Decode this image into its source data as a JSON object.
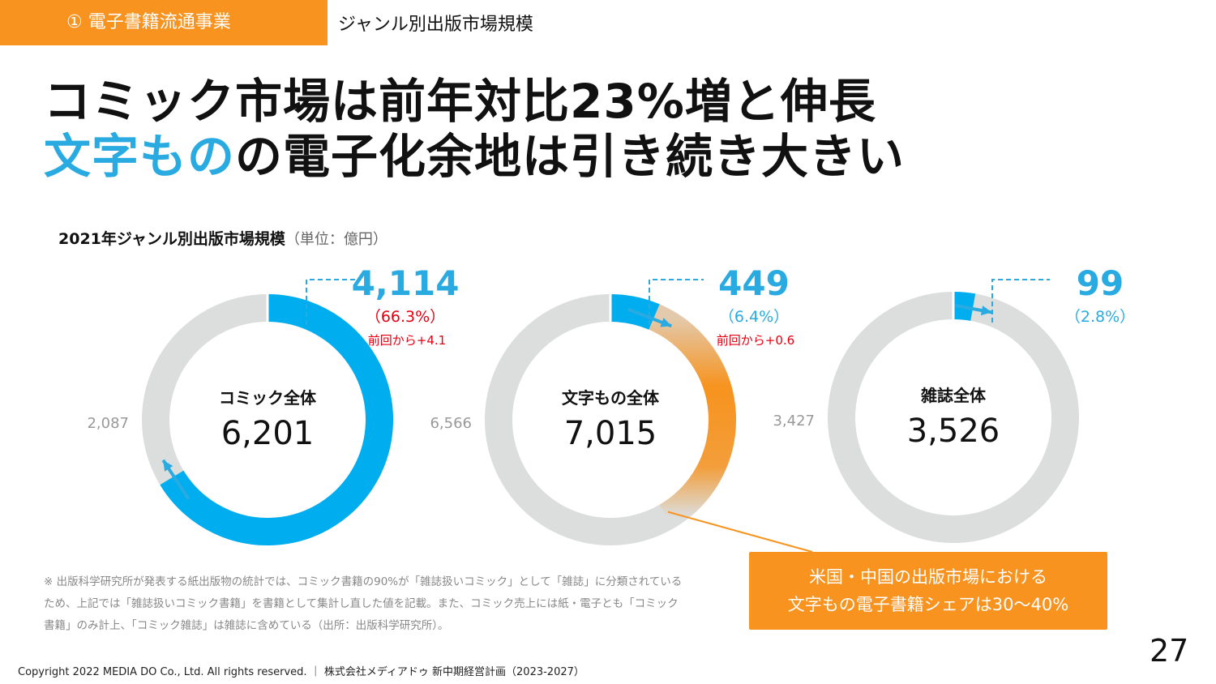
{
  "header": {
    "section_label": "① 電子書籍流通事業",
    "breadcrumb": "ジャンル別出版市場規模"
  },
  "headline": {
    "line1": "コミック市場は前年対比23%増と伸長",
    "line2_highlight": "文字もの",
    "line2_rest": "の電子化余地は引き続き大きい"
  },
  "colors": {
    "accent_orange": "#f7931e",
    "accent_blue": "#00aeef",
    "ring_gray": "#dcdddd",
    "increase_red": "#e60012"
  },
  "chart_data": {
    "type": "donut",
    "title": "2021年ジャンル別出版市場規模",
    "unit_label": "（単位：億円）",
    "charts": [
      {
        "name": "コミック全体",
        "total": 6201,
        "total_label": "6,201",
        "digital_value": 4114,
        "digital_label": "4,114",
        "share_label": "（66.3%）",
        "change_label": "前回から+4.1",
        "print_value": 2087,
        "print_label": "2,087",
        "growth_arrow": true
      },
      {
        "name": "文字もの全体",
        "total": 7015,
        "total_label": "7,015",
        "digital_value": 449,
        "digital_label": "449",
        "share_label": "（6.4%）",
        "change_label": "前回から+0.6",
        "print_value": 6566,
        "print_label": "6,566",
        "growth_arrow": true,
        "potential_highlight": true
      },
      {
        "name": "雑誌全体",
        "total": 3526,
        "total_label": "3,526",
        "digital_value": 99,
        "digital_label": "99",
        "share_label": "（2.8%）",
        "change_label": "",
        "print_value": 3427,
        "print_label": "3,427",
        "growth_arrow": true
      }
    ]
  },
  "callout": {
    "line1": "米国・中国の出版市場における",
    "line2": "文字もの電子書籍シェアは30〜40%"
  },
  "note": "※ 出版科学研究所が発表する紙出版物の統計では、コミック書籍の90%が「雑誌扱いコミック」として「雑誌」に分類されているため、上記では「雑誌扱いコミック書籍」を書籍として集計し直した値を記載。また、コミック売上には紙・電子とも「コミック書籍」のみ計上、「コミック雑誌」は雑誌に含めている（出所：出版科学研究所）。",
  "footer": "Copyright 2022 MEDIA DO Co., Ltd. All rights reserved. ｜ 株式会社メディアドゥ 新中期経営計画（2023-2027）",
  "page_number": "27"
}
